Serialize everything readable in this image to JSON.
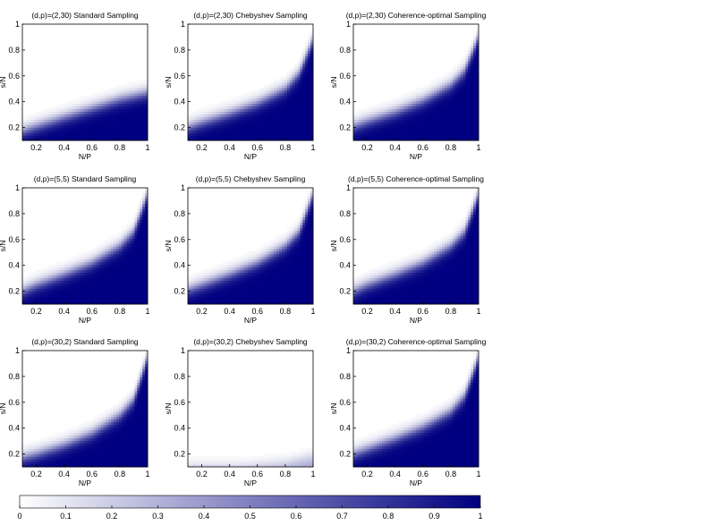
{
  "chart_data": [
    {
      "type": "heatmap",
      "title": "(d,p)=(2,30) Standard Sampling",
      "xlabel": "N/P",
      "ylabel": "s/N",
      "xlim": [
        0.1,
        1
      ],
      "ylim": [
        0.1,
        1
      ],
      "xticks": [
        "0.2",
        "0.4",
        "0.6",
        "0.8",
        "1"
      ],
      "yticks": [
        "0.2",
        "0.4",
        "0.6",
        "0.8",
        "1"
      ],
      "transition_x": [
        0.1,
        0.2,
        0.4,
        0.6,
        0.8,
        1.0
      ],
      "transition_s": [
        0.17,
        0.21,
        0.28,
        0.35,
        0.42,
        0.47
      ]
    },
    {
      "type": "heatmap",
      "title": "(d,p)=(2,30) Chebyshev Sampling",
      "xlabel": "N/P",
      "ylabel": "s/N",
      "xlim": [
        0.1,
        1
      ],
      "ylim": [
        0.1,
        1
      ],
      "xticks": [
        "0.2",
        "0.4",
        "0.6",
        "0.8",
        "1"
      ],
      "yticks": [
        "0.2",
        "0.4",
        "0.6",
        "0.8",
        "1"
      ],
      "transition_x": [
        0.1,
        0.2,
        0.4,
        0.6,
        0.8,
        0.9,
        1.0
      ],
      "transition_s": [
        0.2,
        0.24,
        0.31,
        0.39,
        0.5,
        0.62,
        0.88
      ]
    },
    {
      "type": "heatmap",
      "title": "(d,p)=(2,30) Coherence-optimal Sampling",
      "xlabel": "N/P",
      "ylabel": "s/N",
      "xlim": [
        0.1,
        1
      ],
      "ylim": [
        0.1,
        1
      ],
      "xticks": [
        "0.2",
        "0.4",
        "0.6",
        "0.8",
        "1"
      ],
      "yticks": [
        "0.2",
        "0.4",
        "0.6",
        "0.8",
        "1"
      ],
      "transition_x": [
        0.1,
        0.2,
        0.4,
        0.6,
        0.8,
        0.9,
        1.0
      ],
      "transition_s": [
        0.21,
        0.25,
        0.32,
        0.41,
        0.53,
        0.64,
        0.9
      ]
    },
    {
      "type": "heatmap",
      "title": "(d,p)=(5,5) Standard Sampling",
      "xlabel": "N/P",
      "ylabel": "s/N",
      "xlim": [
        0.1,
        1
      ],
      "ylim": [
        0.1,
        1
      ],
      "xticks": [
        "0.2",
        "0.4",
        "0.6",
        "0.8",
        "1"
      ],
      "yticks": [
        "0.2",
        "0.4",
        "0.6",
        "0.8",
        "1"
      ],
      "transition_x": [
        0.1,
        0.2,
        0.4,
        0.6,
        0.8,
        0.9,
        1.0
      ],
      "transition_s": [
        0.2,
        0.25,
        0.33,
        0.42,
        0.55,
        0.66,
        0.95
      ]
    },
    {
      "type": "heatmap",
      "title": "(d,p)=(5,5) Chebyshev Sampling",
      "xlabel": "N/P",
      "ylabel": "s/N",
      "xlim": [
        0.1,
        1
      ],
      "ylim": [
        0.1,
        1
      ],
      "xticks": [
        "0.2",
        "0.4",
        "0.6",
        "0.8",
        "1"
      ],
      "yticks": [
        "0.2",
        "0.4",
        "0.6",
        "0.8",
        "1"
      ],
      "transition_x": [
        0.1,
        0.2,
        0.4,
        0.6,
        0.8,
        0.9,
        1.0
      ],
      "transition_s": [
        0.21,
        0.25,
        0.33,
        0.42,
        0.55,
        0.66,
        0.95
      ]
    },
    {
      "type": "heatmap",
      "title": "(d,p)=(5,5) Coherence-optimal Sampling",
      "xlabel": "N/P",
      "ylabel": "s/N",
      "xlim": [
        0.1,
        1
      ],
      "ylim": [
        0.1,
        1
      ],
      "xticks": [
        "0.2",
        "0.4",
        "0.6",
        "0.8",
        "1"
      ],
      "yticks": [
        "0.2",
        "0.4",
        "0.6",
        "0.8",
        "1"
      ],
      "transition_x": [
        0.1,
        0.2,
        0.4,
        0.6,
        0.8,
        0.9,
        1.0
      ],
      "transition_s": [
        0.2,
        0.25,
        0.33,
        0.42,
        0.55,
        0.66,
        0.95
      ]
    },
    {
      "type": "heatmap",
      "title": "(d,p)=(30,2) Standard Sampling",
      "xlabel": "N/P",
      "ylabel": "s/N",
      "xlim": [
        0.1,
        1
      ],
      "ylim": [
        0.1,
        1
      ],
      "xticks": [
        "0.2",
        "0.4",
        "0.6",
        "0.8",
        "1"
      ],
      "yticks": [
        "0.2",
        "0.4",
        "0.6",
        "0.8",
        "1"
      ],
      "transition_x": [
        0.1,
        0.2,
        0.4,
        0.6,
        0.8,
        0.9,
        1.0
      ],
      "transition_s": [
        0.17,
        0.2,
        0.27,
        0.36,
        0.5,
        0.62,
        0.95
      ]
    },
    {
      "type": "heatmap",
      "title": "(d,p)=(30,2) Chebyshev Sampling",
      "xlabel": "N/P",
      "ylabel": "s/N",
      "xlim": [
        0.1,
        1
      ],
      "ylim": [
        0.1,
        1
      ],
      "xticks": [
        "0.2",
        "0.4",
        "0.6",
        "0.8",
        "1"
      ],
      "yticks": [
        "0.2",
        "0.4",
        "0.6",
        "0.8",
        "1"
      ],
      "transition_x": [
        0.1,
        0.5,
        0.6,
        0.8,
        1.0
      ],
      "transition_s": [
        0.1,
        0.1,
        0.11,
        0.13,
        0.18
      ],
      "max_value": 0.35
    },
    {
      "type": "heatmap",
      "title": "(d,p)=(30,2) Coherence-optimal Sampling",
      "xlabel": "N/P",
      "ylabel": "s/N",
      "xlim": [
        0.1,
        1
      ],
      "ylim": [
        0.1,
        1
      ],
      "xticks": [
        "0.2",
        "0.4",
        "0.6",
        "0.8",
        "1"
      ],
      "yticks": [
        "0.2",
        "0.4",
        "0.6",
        "0.8",
        "1"
      ],
      "transition_x": [
        0.1,
        0.2,
        0.4,
        0.6,
        0.8,
        0.9,
        1.0
      ],
      "transition_s": [
        0.2,
        0.24,
        0.32,
        0.41,
        0.53,
        0.65,
        0.95
      ]
    }
  ],
  "colorbar": {
    "ticks": [
      "0",
      "0.1",
      "0.2",
      "0.3",
      "0.4",
      "0.5",
      "0.6",
      "0.7",
      "0.8",
      "0.9",
      "1"
    ],
    "color_low": "#ffffff",
    "color_high": "#000080"
  }
}
